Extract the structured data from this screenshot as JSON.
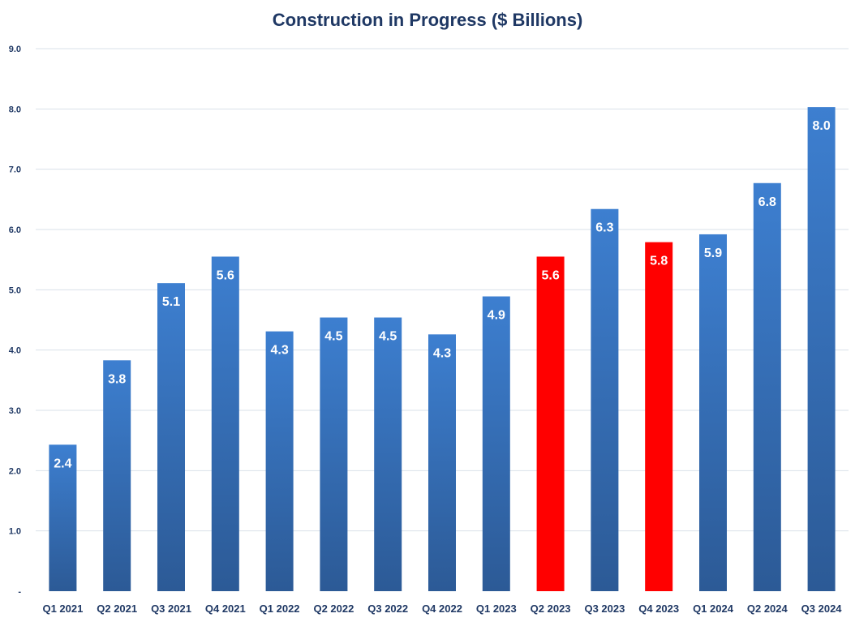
{
  "chart_data": {
    "type": "bar",
    "title": "Construction in Progress ($ Billions)",
    "categories": [
      "Q1 2021",
      "Q2 2021",
      "Q3 2021",
      "Q4 2021",
      "Q1 2022",
      "Q2 2022",
      "Q3 2022",
      "Q4 2022",
      "Q1 2023",
      "Q2 2023",
      "Q3 2023",
      "Q4 2023",
      "Q1 2024",
      "Q2 2024",
      "Q3 2024"
    ],
    "values": [
      2.43,
      3.83,
      5.11,
      5.55,
      4.31,
      4.54,
      4.54,
      4.26,
      4.89,
      5.55,
      6.34,
      5.79,
      5.92,
      6.77,
      8.03
    ],
    "data_labels": [
      "2.4",
      "3.8",
      "5.1",
      "5.6",
      "4.3",
      "4.5",
      "4.5",
      "4.3",
      "4.9",
      "5.6",
      "6.3",
      "5.8",
      "5.9",
      "6.8",
      "8.0"
    ],
    "highlighted": [
      false,
      false,
      false,
      false,
      false,
      false,
      false,
      false,
      false,
      true,
      false,
      true,
      false,
      false,
      false
    ],
    "y_ticks": [
      "-",
      "1.0",
      "2.0",
      "3.0",
      "4.0",
      "5.0",
      "6.0",
      "7.0",
      "8.0",
      "9.0"
    ],
    "ylim": [
      0,
      9
    ],
    "grid": true,
    "colors": {
      "bar_top": "#3d7fd0",
      "bar_bottom": "#2c5a96",
      "highlight": "#ff0000",
      "grid": "#d9e1ea",
      "text": "#1f3864"
    }
  }
}
